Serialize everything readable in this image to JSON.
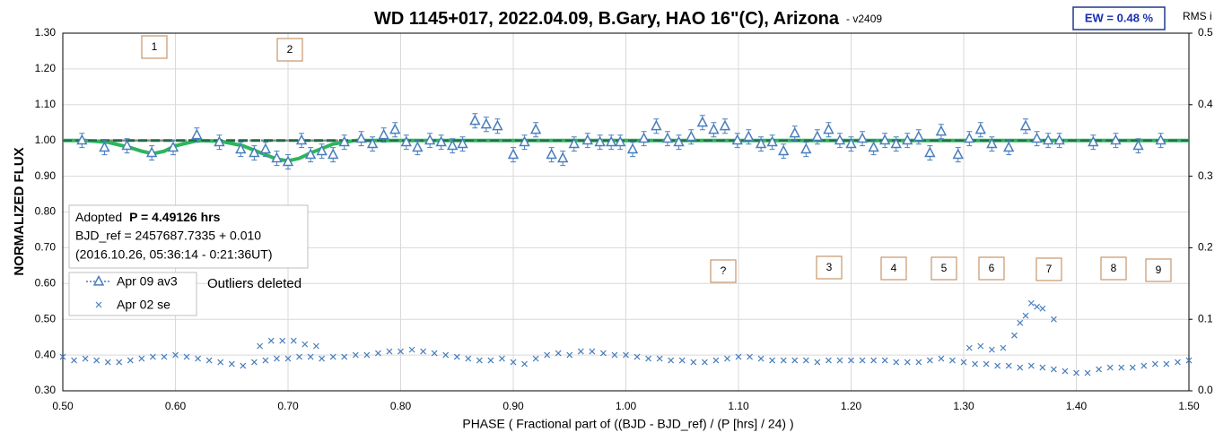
{
  "chart_data": {
    "type": "scatter",
    "title": "WD 1145+017, 2022.04.09, B.Gary, HAO 16\"(C), Arizona",
    "subtitle": "- v2409",
    "xlabel": "PHASE ( Fractional part of ((BJD - BJD_ref) / (P [hrs] / 24) )",
    "ylabel": "NORMALIZED FLUX",
    "y2label": "RMS i",
    "xlim": [
      0.5,
      1.5
    ],
    "ylim": [
      0.3,
      1.3
    ],
    "y2lim": [
      0,
      0.5
    ],
    "grid": true,
    "xticks": [
      {
        "value": 0.5,
        "label": "0.50"
      },
      {
        "value": 0.6,
        "label": "0.60"
      },
      {
        "value": 0.7,
        "label": "0.70"
      },
      {
        "value": 0.8,
        "label": "0.80"
      },
      {
        "value": 0.9,
        "label": "0.90"
      },
      {
        "value": 1.0,
        "label": "1.00"
      },
      {
        "value": 1.1,
        "label": "1.10"
      },
      {
        "value": 1.2,
        "label": "1.20"
      },
      {
        "value": 1.3,
        "label": "1.30"
      },
      {
        "value": 1.4,
        "label": "1.40"
      },
      {
        "value": 1.5,
        "label": "1.50"
      }
    ],
    "yticks": [
      {
        "value": 0.3,
        "label": "0.30"
      },
      {
        "value": 0.4,
        "label": "0.40"
      },
      {
        "value": 0.5,
        "label": "0.50"
      },
      {
        "value": 0.6,
        "label": "0.60"
      },
      {
        "value": 0.7,
        "label": "0.70"
      },
      {
        "value": 0.8,
        "label": "0.80"
      },
      {
        "value": 0.9,
        "label": "0.90"
      },
      {
        "value": 1.0,
        "label": "1.00"
      },
      {
        "value": 1.1,
        "label": "1.10"
      },
      {
        "value": 1.2,
        "label": "1.20"
      },
      {
        "value": 1.3,
        "label": "1.30"
      }
    ],
    "y2ticks": [
      {
        "value": 0,
        "label": "0.0"
      },
      0.1,
      0.2,
      0.3,
      0.4,
      0.5
    ],
    "series": [
      {
        "name": "Apr 09 av3",
        "color": "#4a7ebb",
        "marker": "triangle",
        "x": [
          0.517,
          0.537,
          0.557,
          0.579,
          0.598,
          0.619,
          0.639,
          0.658,
          0.67,
          0.68,
          0.69,
          0.7,
          0.712,
          0.72,
          0.73,
          0.74,
          0.75,
          0.765,
          0.775,
          0.785,
          0.795,
          0.805,
          0.815,
          0.826,
          0.836,
          0.846,
          0.855,
          0.866,
          0.876,
          0.886,
          0.9,
          0.91,
          0.92,
          0.934,
          0.944,
          0.954,
          0.966,
          0.977,
          0.987,
          0.995,
          1.006,
          1.016,
          1.027,
          1.037,
          1.047,
          1.058,
          1.068,
          1.078,
          1.088,
          1.099,
          1.109,
          1.12,
          1.13,
          1.14,
          1.15,
          1.16,
          1.17,
          1.18,
          1.19,
          1.2,
          1.21,
          1.22,
          1.23,
          1.24,
          1.25,
          1.26,
          1.27,
          1.28,
          1.295,
          1.305,
          1.315,
          1.325,
          1.34,
          1.355,
          1.365,
          1.375,
          1.385,
          1.415,
          1.435,
          1.455,
          1.475
        ],
        "values": [
          1.0,
          0.98,
          0.985,
          0.965,
          0.98,
          1.015,
          0.995,
          0.975,
          0.965,
          0.975,
          0.95,
          0.94,
          1.0,
          0.96,
          0.97,
          0.96,
          0.995,
          1.005,
          0.99,
          1.015,
          1.03,
          0.995,
          0.98,
          1.0,
          0.995,
          0.985,
          0.99,
          1.055,
          1.045,
          1.04,
          0.96,
          0.995,
          1.03,
          0.96,
          0.95,
          0.99,
          1.0,
          0.995,
          0.995,
          0.995,
          0.975,
          1.005,
          1.04,
          1.005,
          0.995,
          1.01,
          1.05,
          1.03,
          1.04,
          1.0,
          1.01,
          0.99,
          0.995,
          0.97,
          1.02,
          0.975,
          1.01,
          1.03,
          1.0,
          0.99,
          1.005,
          0.98,
          1.0,
          0.99,
          1.0,
          1.01,
          0.965,
          1.025,
          0.96,
          1.005,
          1.03,
          0.99,
          0.98,
          1.04,
          1.005,
          1.0,
          1.0,
          0.995,
          1.0,
          0.985,
          1.0
        ],
        "errors": [
          0.02,
          0.02,
          0.02,
          0.02,
          0.02,
          0.02,
          0.02,
          0.02,
          0.02,
          0.02,
          0.02,
          0.02,
          0.02,
          0.02,
          0.02,
          0.02,
          0.02,
          0.02,
          0.02,
          0.02,
          0.02,
          0.02,
          0.02,
          0.02,
          0.02,
          0.02,
          0.02,
          0.02,
          0.02,
          0.02,
          0.02,
          0.02,
          0.02,
          0.02,
          0.02,
          0.02,
          0.02,
          0.02,
          0.02,
          0.02,
          0.02,
          0.02,
          0.02,
          0.02,
          0.02,
          0.02,
          0.02,
          0.02,
          0.02,
          0.02,
          0.02,
          0.02,
          0.02,
          0.02,
          0.02,
          0.02,
          0.02,
          0.02,
          0.02,
          0.02,
          0.02,
          0.02,
          0.02,
          0.02,
          0.02,
          0.02,
          0.02,
          0.02,
          0.02,
          0.02,
          0.02,
          0.02,
          0.02,
          0.02,
          0.02,
          0.02,
          0.02,
          0.02,
          0.02,
          0.02,
          0.02
        ]
      },
      {
        "name": "Apr 02 se",
        "color": "#4a7ebb",
        "marker": "x",
        "x": [
          0.5,
          0.51,
          0.52,
          0.53,
          0.54,
          0.55,
          0.56,
          0.57,
          0.58,
          0.59,
          0.6,
          0.61,
          0.62,
          0.63,
          0.64,
          0.65,
          0.66,
          0.67,
          0.68,
          0.69,
          0.7,
          0.71,
          0.72,
          0.73,
          0.74,
          0.75,
          0.76,
          0.77,
          0.78,
          0.79,
          0.8,
          0.81,
          0.82,
          0.83,
          0.84,
          0.85,
          0.86,
          0.87,
          0.88,
          0.89,
          0.9,
          0.91,
          0.92,
          0.93,
          0.94,
          0.95,
          0.96,
          0.97,
          0.98,
          0.99,
          1.0,
          1.01,
          1.02,
          1.03,
          1.04,
          1.05,
          1.06,
          1.07,
          1.08,
          1.09,
          1.1,
          1.11,
          1.12,
          1.13,
          1.14,
          1.15,
          1.16,
          1.17,
          1.18,
          1.19,
          1.2,
          1.21,
          1.22,
          1.23,
          1.24,
          1.25,
          1.26,
          1.27,
          1.28,
          1.29,
          1.3,
          1.31,
          1.32,
          1.33,
          1.34,
          1.35,
          1.36,
          1.37,
          1.38,
          1.39,
          1.4,
          1.41,
          1.42,
          1.43,
          1.44,
          1.45,
          1.46,
          1.47,
          1.48,
          1.49,
          1.5,
          0.675,
          0.685,
          0.695,
          0.705,
          0.715,
          0.725,
          1.305,
          1.315,
          1.325,
          1.335,
          1.345,
          1.35,
          1.355,
          1.36,
          1.365,
          1.37,
          1.38
        ],
        "values": [
          0.395,
          0.385,
          0.39,
          0.385,
          0.38,
          0.38,
          0.385,
          0.39,
          0.395,
          0.395,
          0.4,
          0.395,
          0.39,
          0.385,
          0.38,
          0.375,
          0.37,
          0.38,
          0.385,
          0.39,
          0.39,
          0.395,
          0.395,
          0.39,
          0.395,
          0.395,
          0.4,
          0.4,
          0.405,
          0.41,
          0.41,
          0.415,
          0.41,
          0.405,
          0.4,
          0.395,
          0.39,
          0.385,
          0.385,
          0.39,
          0.38,
          0.375,
          0.39,
          0.4,
          0.405,
          0.4,
          0.41,
          0.41,
          0.405,
          0.4,
          0.4,
          0.395,
          0.39,
          0.39,
          0.385,
          0.385,
          0.38,
          0.38,
          0.385,
          0.39,
          0.395,
          0.395,
          0.39,
          0.385,
          0.385,
          0.385,
          0.385,
          0.38,
          0.385,
          0.385,
          0.385,
          0.385,
          0.385,
          0.385,
          0.38,
          0.38,
          0.38,
          0.385,
          0.39,
          0.385,
          0.38,
          0.375,
          0.375,
          0.37,
          0.37,
          0.365,
          0.37,
          0.365,
          0.36,
          0.355,
          0.35,
          0.35,
          0.36,
          0.365,
          0.365,
          0.365,
          0.37,
          0.375,
          0.375,
          0.38,
          0.385,
          0.425,
          0.44,
          0.44,
          0.44,
          0.43,
          0.425,
          0.42,
          0.425,
          0.415,
          0.42,
          0.455,
          0.49,
          0.51,
          0.545,
          0.535,
          0.53,
          0.5
        ]
      }
    ],
    "model": {
      "color": "#2db55d",
      "x": [
        0.5,
        0.52,
        0.54,
        0.56,
        0.57,
        0.58,
        0.59,
        0.6,
        0.62,
        0.64,
        0.66,
        0.68,
        0.69,
        0.7,
        0.71,
        0.72,
        0.74,
        0.76,
        0.8,
        1.5
      ],
      "values": [
        1.0,
        1.0,
        0.995,
        0.98,
        0.97,
        0.963,
        0.97,
        0.985,
        1.0,
        0.998,
        0.985,
        0.96,
        0.948,
        0.943,
        0.95,
        0.965,
        0.99,
        1.0,
        1.0,
        1.0
      ]
    },
    "reference_lines": [
      {
        "value": 1.0,
        "xlim": [
          0.5,
          0.76
        ],
        "color": "#8c8c8c"
      },
      {
        "value": 1.0,
        "xlim": [
          0.5,
          1.5
        ],
        "color": "#1e6b45"
      }
    ],
    "annotations": [
      "1",
      "2",
      "?",
      "3",
      "4",
      "5",
      "6",
      "7",
      "8",
      "9"
    ],
    "ew": "EW = 0.48 %",
    "info": {
      "adopted": "Adopted ",
      "period": "P = 4.49126 hrs",
      "bjd": "BJD_ref = 2457687.7335 + 0.010",
      "date": "(2016.10.26, 05:36:14 - 0:21:36UT)"
    },
    "note": "Outliers deleted"
  }
}
